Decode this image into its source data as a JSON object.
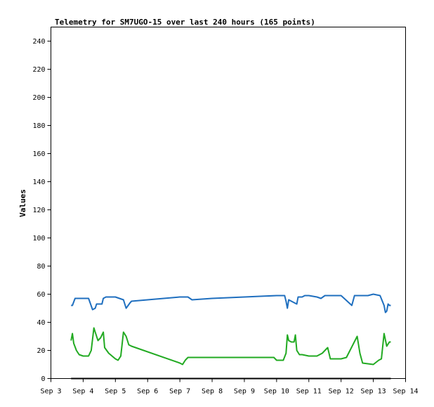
{
  "chart_data": {
    "type": "line",
    "title": "Telemetry for SM7UGO-15 over last 240 hours (165 points)",
    "ylabel": "Values",
    "xlabel": "",
    "ylim": [
      0,
      250
    ],
    "y_ticks": [
      0,
      20,
      40,
      60,
      80,
      100,
      120,
      140,
      160,
      180,
      200,
      220,
      240
    ],
    "x_range": [
      "Sep 3",
      "Sep 14"
    ],
    "x_ticks": [
      "Sep 3",
      "Sep 4",
      "Sep 5",
      "Sep 6",
      "Sep 7",
      "Sep 8",
      "Sep 9",
      "Sep 10",
      "Sep 11",
      "Sep 12",
      "Sep 13",
      "Sep 14"
    ],
    "grid": false,
    "legend": "none",
    "series": [
      {
        "color": "#1f6fbf",
        "points": [
          [
            "Sep 3 15:00",
            52
          ],
          [
            "Sep 3 16:00",
            52
          ],
          [
            "Sep 3 18:00",
            57
          ],
          [
            "Sep 4 00:00",
            57
          ],
          [
            "Sep 4 04:00",
            57
          ],
          [
            "Sep 4 07:00",
            49
          ],
          [
            "Sep 4 09:00",
            50
          ],
          [
            "Sep 4 10:00",
            53
          ],
          [
            "Sep 4 14:00",
            53
          ],
          [
            "Sep 4 15:00",
            57
          ],
          [
            "Sep 4 17:00",
            58
          ],
          [
            "Sep 5 00:00",
            58
          ],
          [
            "Sep 5 06:00",
            56
          ],
          [
            "Sep 5 08:00",
            50
          ],
          [
            "Sep 5 11:00",
            54
          ],
          [
            "Sep 5 12:00",
            55
          ],
          [
            "Sep 6 00:00",
            56
          ],
          [
            "Sep 7 00:00",
            58
          ],
          [
            "Sep 7 06:00",
            58
          ],
          [
            "Sep 7 09:00",
            56
          ],
          [
            "Sep 8 00:00",
            57
          ],
          [
            "Sep 9 00:00",
            58
          ],
          [
            "Sep 10 00:00",
            59
          ],
          [
            "Sep 10 06:00",
            59
          ],
          [
            "Sep 10 07:00",
            55
          ],
          [
            "Sep 10 08:00",
            50
          ],
          [
            "Sep 10 09:00",
            56
          ],
          [
            "Sep 10 11:00",
            55
          ],
          [
            "Sep 10 13:00",
            54
          ],
          [
            "Sep 10 15:00",
            53
          ],
          [
            "Sep 10 16:00",
            58
          ],
          [
            "Sep 10 19:00",
            58
          ],
          [
            "Sep 10 21:00",
            59
          ],
          [
            "Sep 11 00:00",
            59
          ],
          [
            "Sep 11 06:00",
            58
          ],
          [
            "Sep 11 09:00",
            57
          ],
          [
            "Sep 11 12:00",
            59
          ],
          [
            "Sep 11 16:00",
            59
          ],
          [
            "Sep 11 18:00",
            59
          ],
          [
            "Sep 12 00:00",
            59
          ],
          [
            "Sep 12 08:00",
            52
          ],
          [
            "Sep 12 10:00",
            59
          ],
          [
            "Sep 12 20:00",
            59
          ],
          [
            "Sep 13 00:00",
            60
          ],
          [
            "Sep 13 05:00",
            59
          ],
          [
            "Sep 13 08:00",
            52
          ],
          [
            "Sep 13 09:00",
            47
          ],
          [
            "Sep 13 10:00",
            48
          ],
          [
            "Sep 13 11:00",
            53
          ],
          [
            "Sep 13 12:00",
            52
          ],
          [
            "Sep 13 13:00",
            52
          ]
        ]
      },
      {
        "color": "#22aa22",
        "points": [
          [
            "Sep 3 15:00",
            27
          ],
          [
            "Sep 3 16:00",
            32
          ],
          [
            "Sep 3 17:00",
            25
          ],
          [
            "Sep 3 19:00",
            20
          ],
          [
            "Sep 3 21:00",
            17
          ],
          [
            "Sep 4 00:00",
            16
          ],
          [
            "Sep 4 02:00",
            16
          ],
          [
            "Sep 4 04:00",
            16
          ],
          [
            "Sep 4 06:00",
            20
          ],
          [
            "Sep 4 08:00",
            36
          ],
          [
            "Sep 4 09:00",
            33
          ],
          [
            "Sep 4 11:00",
            27
          ],
          [
            "Sep 4 13:00",
            29
          ],
          [
            "Sep 4 15:00",
            33
          ],
          [
            "Sep 4 16:00",
            22
          ],
          [
            "Sep 4 19:00",
            18
          ],
          [
            "Sep 5 00:00",
            14
          ],
          [
            "Sep 5 02:00",
            13
          ],
          [
            "Sep 5 04:00",
            16
          ],
          [
            "Sep 5 06:00",
            33
          ],
          [
            "Sep 5 08:00",
            30
          ],
          [
            "Sep 5 10:00",
            24
          ],
          [
            "Sep 5 12:00",
            23
          ],
          [
            "Sep 7 00:00",
            11
          ],
          [
            "Sep 7 02:00",
            10
          ],
          [
            "Sep 7 04:00",
            13
          ],
          [
            "Sep 7 06:00",
            15
          ],
          [
            "Sep 7 12:00",
            15
          ],
          [
            "Sep 8 00:00",
            15
          ],
          [
            "Sep 9 00:00",
            15
          ],
          [
            "Sep 9 22:00",
            15
          ],
          [
            "Sep 10 00:00",
            13
          ],
          [
            "Sep 10 05:00",
            13
          ],
          [
            "Sep 10 07:00",
            18
          ],
          [
            "Sep 10 08:00",
            31
          ],
          [
            "Sep 10 09:00",
            27
          ],
          [
            "Sep 10 11:00",
            26
          ],
          [
            "Sep 10 13:00",
            26
          ],
          [
            "Sep 10 14:00",
            31
          ],
          [
            "Sep 10 15:00",
            20
          ],
          [
            "Sep 10 17:00",
            17
          ],
          [
            "Sep 10 19:00",
            17
          ],
          [
            "Sep 11 00:00",
            16
          ],
          [
            "Sep 11 06:00",
            16
          ],
          [
            "Sep 11 10:00",
            18
          ],
          [
            "Sep 11 14:00",
            22
          ],
          [
            "Sep 11 16:00",
            14
          ],
          [
            "Sep 12 00:00",
            14
          ],
          [
            "Sep 12 04:00",
            15
          ],
          [
            "Sep 12 12:00",
            30
          ],
          [
            "Sep 12 14:00",
            18
          ],
          [
            "Sep 12 16:00",
            11
          ],
          [
            "Sep 13 00:00",
            10
          ],
          [
            "Sep 13 04:00",
            13
          ],
          [
            "Sep 13 06:00",
            14
          ],
          [
            "Sep 13 08:00",
            32
          ],
          [
            "Sep 13 10:00",
            23
          ],
          [
            "Sep 13 12:00",
            26
          ],
          [
            "Sep 13 13:00",
            26
          ]
        ]
      },
      {
        "color": "#000000",
        "points": [
          [
            "Sep 3 15:00",
            0
          ],
          [
            "Sep 13 13:00",
            0
          ]
        ]
      }
    ]
  }
}
